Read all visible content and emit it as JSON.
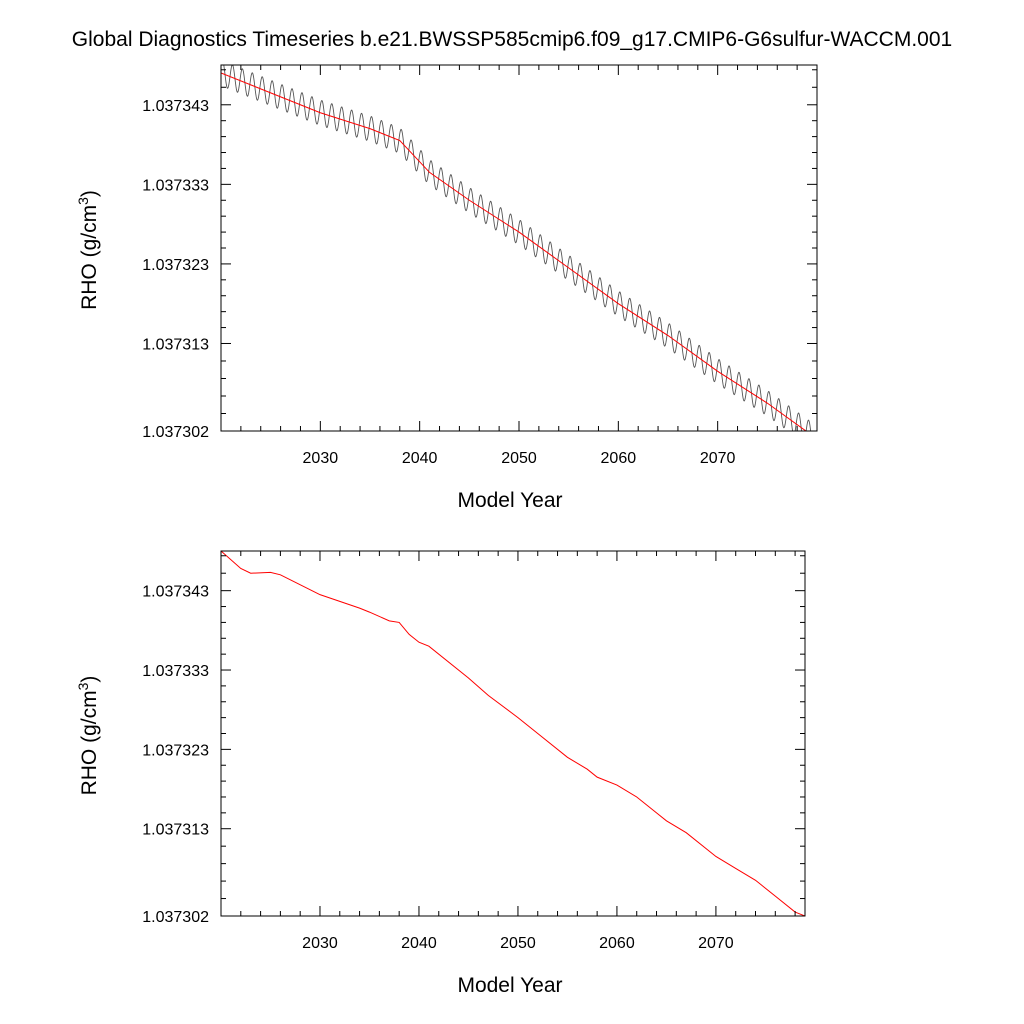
{
  "title": "Global Diagnostics Timeseries b.e21.BWSSP585cmip6.f09_g17.CMIP6-G6sulfur-WACCM.001",
  "colors": {
    "raw": "#555555",
    "smooth": "#ff0000",
    "axes": "#000000"
  },
  "chart_data": [
    {
      "type": "line",
      "xlabel": "Model Year",
      "ylabel": "RHO (g/cm",
      "ylabel_superscript": "3",
      "ylabel_close": ")",
      "xlim": [
        2020,
        2080
      ],
      "ylim": [
        1.037302,
        1.037348
      ],
      "xticks": [
        "2030",
        "2040",
        "2050",
        "2060",
        "2070"
      ],
      "yticks": [
        "1.037302",
        "1.037313",
        "1.037323",
        "1.037333",
        "1.037343"
      ],
      "series": [
        {
          "role": "raw-monthly",
          "color": "#555555",
          "seasonal_amplitude": 1.6e-06,
          "x": [
            2020,
            2025,
            2030,
            2035,
            2038,
            2041,
            2045,
            2050,
            2055,
            2060,
            2065,
            2070,
            2075,
            2080
          ],
          "y": [
            1.037347,
            1.0373445,
            1.037342,
            1.03734,
            1.0373385,
            1.0373345,
            1.037331,
            1.037327,
            1.0373225,
            1.037318,
            1.037314,
            1.0373095,
            1.0373055,
            1.037301
          ]
        },
        {
          "role": "annual-mean",
          "color": "#ff0000",
          "x": [
            2020,
            2025,
            2030,
            2035,
            2038,
            2041,
            2045,
            2050,
            2055,
            2060,
            2065,
            2070,
            2075,
            2080
          ],
          "y": [
            1.037347,
            1.0373445,
            1.037342,
            1.03734,
            1.0373385,
            1.0373345,
            1.037331,
            1.037327,
            1.0373225,
            1.037318,
            1.037314,
            1.0373095,
            1.0373055,
            1.037301
          ]
        }
      ]
    },
    {
      "type": "line",
      "xlabel": "Model Year",
      "ylabel": "RHO (g/cm",
      "ylabel_superscript": "3",
      "ylabel_close": ")",
      "xlim": [
        2020,
        2079
      ],
      "ylim": [
        1.037302,
        1.037348
      ],
      "xticks": [
        "2030",
        "2040",
        "2050",
        "2060",
        "2070"
      ],
      "yticks": [
        "1.037302",
        "1.037313",
        "1.037323",
        "1.037333",
        "1.037343"
      ],
      "series": [
        {
          "role": "annual-mean",
          "color": "#ff0000",
          "x": [
            2020,
            2022,
            2023,
            2025,
            2026,
            2030,
            2034,
            2035,
            2037,
            2038,
            2039,
            2040,
            2041,
            2045,
            2047,
            2050,
            2052,
            2055,
            2057,
            2058,
            2060,
            2062,
            2064,
            2065,
            2067,
            2070,
            2072,
            2074,
            2076,
            2078,
            2079
          ],
          "y": [
            1.037348,
            1.0373458,
            1.0373452,
            1.0373453,
            1.037345,
            1.0373425,
            1.0373408,
            1.0373403,
            1.0373392,
            1.037339,
            1.0373375,
            1.0373365,
            1.037336,
            1.037332,
            1.0373298,
            1.037327,
            1.037325,
            1.037322,
            1.0373205,
            1.0373195,
            1.0373185,
            1.037317,
            1.037315,
            1.037314,
            1.0373125,
            1.0373095,
            1.037308,
            1.0373065,
            1.0373045,
            1.0373025,
            1.037302
          ]
        }
      ]
    }
  ]
}
